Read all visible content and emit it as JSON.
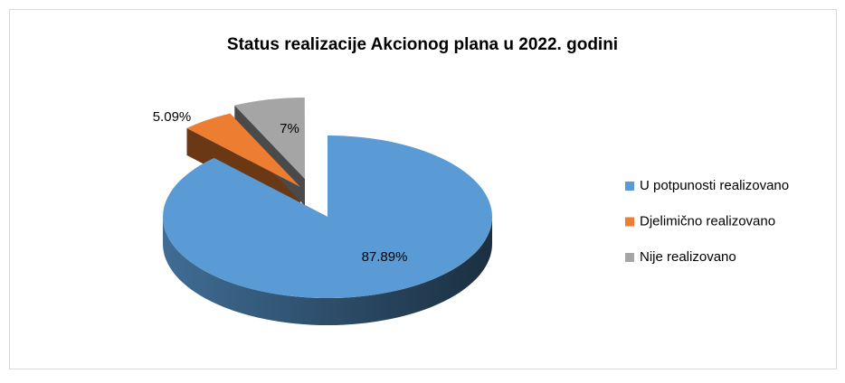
{
  "chart_data": {
    "type": "pie",
    "title": "Status realizacije Akcionog plana u 2022. godini",
    "categories": [
      "U potpunosti realizovano",
      "Djelimično realizovano",
      "Nije realizovano"
    ],
    "values": [
      87.89,
      5.09,
      7
    ],
    "value_labels": [
      "87.89%",
      "5.09%",
      "7%"
    ],
    "colors": [
      "#5b9bd5",
      "#ed7d31",
      "#a5a5a5"
    ],
    "legend": "right"
  }
}
